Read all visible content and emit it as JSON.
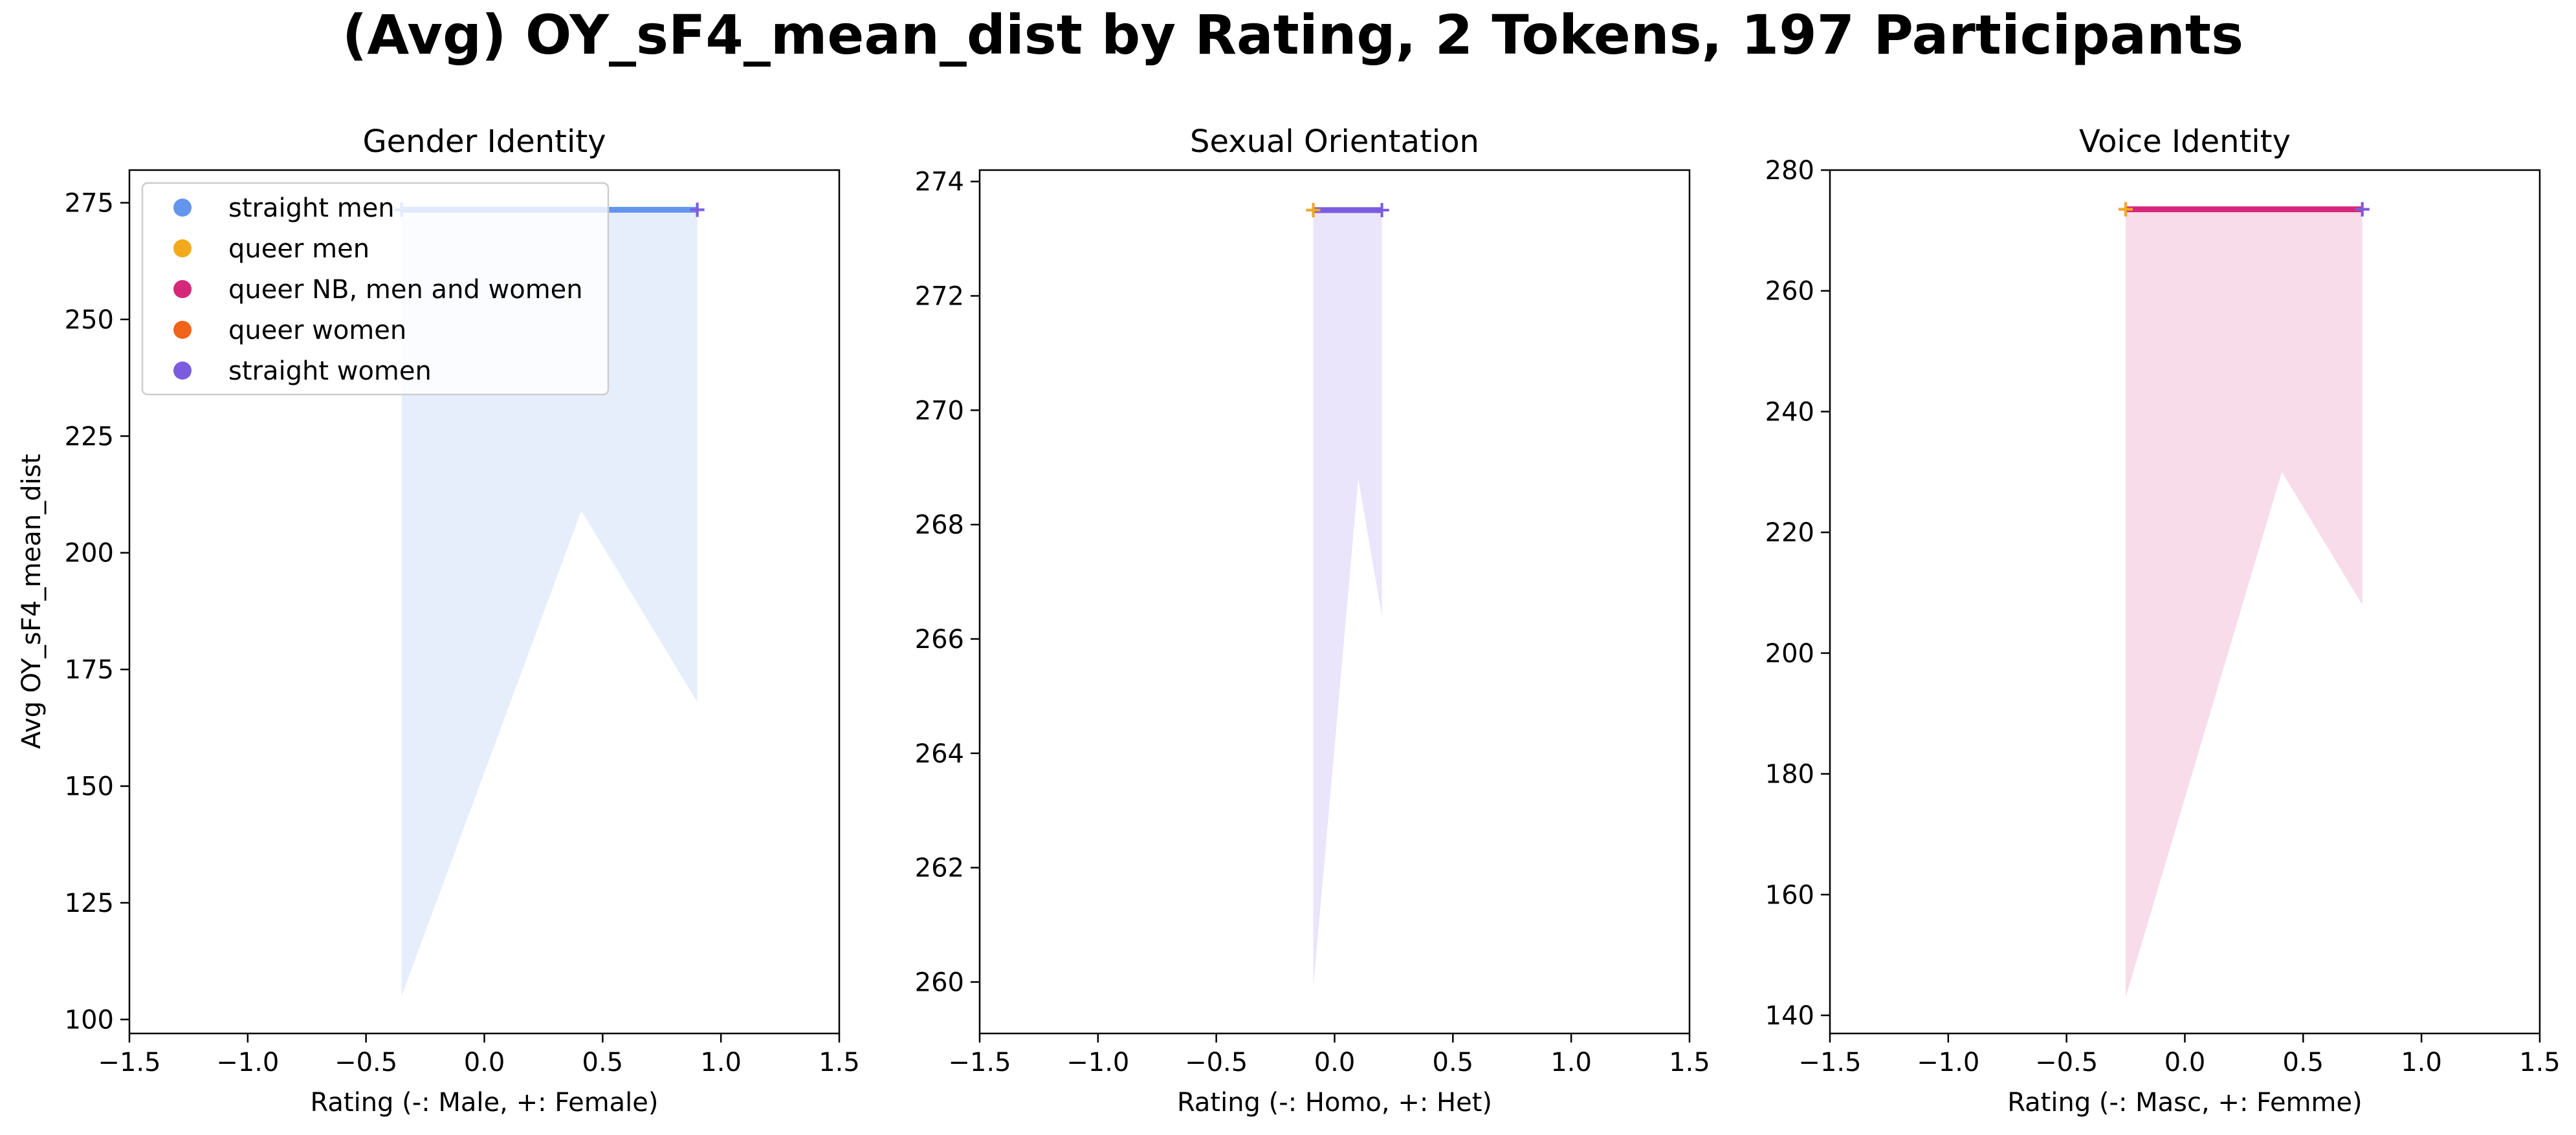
{
  "figure": {
    "title": "(Avg) OY_sF4_mean_dist by Rating, 2 Tokens, 197 Participants",
    "ylabel": "Avg OY_sF4_mean_dist"
  },
  "legend": {
    "placement": "upper-left of first panel",
    "entries": [
      {
        "label": "straight men",
        "color": "#6495ED"
      },
      {
        "label": "queer men",
        "color": "#F2AA1C"
      },
      {
        "label": "queer NB, men and women",
        "color": "#D6287A"
      },
      {
        "label": "queer women",
        "color": "#F26419"
      },
      {
        "label": "straight women",
        "color": "#7B5CE0"
      }
    ]
  },
  "chart_data": [
    {
      "type": "line",
      "title": "Gender Identity",
      "xlabel": "Rating (-: Male, +: Female)",
      "ylabel": "Avg OY_sF4_mean_dist",
      "xlim": [
        -1.5,
        1.5
      ],
      "ylim": [
        97,
        282
      ],
      "xticks": [
        -1.5,
        -1.0,
        -0.5,
        0.0,
        0.5,
        1.0,
        1.5
      ],
      "yticks": [
        100,
        125,
        150,
        175,
        200,
        225,
        250,
        275
      ],
      "xtick_labels": [
        "−1.5",
        "−1.0",
        "−0.5",
        "0.0",
        "0.5",
        "1.0",
        "1.5"
      ],
      "ytick_labels": [
        "100",
        "125",
        "150",
        "175",
        "200",
        "225",
        "250",
        "275"
      ],
      "band": {
        "color": "#6495ED",
        "x": [
          -0.35,
          0.41,
          0.9
        ],
        "upper": [
          273.5,
          273.5,
          273.5
        ],
        "lower": [
          105,
          209,
          168
        ]
      },
      "series": [
        {
          "name": "straight men",
          "color": "#6495ED",
          "x": [
            -0.35,
            0.9
          ],
          "y": [
            273.5,
            273.5
          ]
        },
        {
          "name": "straight women",
          "color": "#7B5CE0",
          "x": [
            0.9
          ],
          "y": [
            273.5
          ]
        }
      ]
    },
    {
      "type": "line",
      "title": "Sexual Orientation",
      "xlabel": "Rating (-: Homo, +: Het)",
      "xlim": [
        -1.5,
        1.5
      ],
      "ylim": [
        259.1,
        274.2
      ],
      "xticks": [
        -1.5,
        -1.0,
        -0.5,
        0.0,
        0.5,
        1.0,
        1.5
      ],
      "yticks": [
        260,
        262,
        264,
        266,
        268,
        270,
        272,
        274
      ],
      "xtick_labels": [
        "−1.5",
        "−1.0",
        "−0.5",
        "0.0",
        "0.5",
        "1.0",
        "1.5"
      ],
      "ytick_labels": [
        "260",
        "262",
        "264",
        "266",
        "268",
        "270",
        "272",
        "274"
      ],
      "band": {
        "color": "#7B5CE0",
        "x": [
          -0.09,
          0.1,
          0.2
        ],
        "upper": [
          273.5,
          273.5,
          273.5
        ],
        "lower": [
          259.9,
          268.8,
          266.4
        ]
      },
      "series": [
        {
          "name": "straight women",
          "color": "#7B5CE0",
          "x": [
            -0.09,
            0.2
          ],
          "y": [
            273.5,
            273.5
          ]
        },
        {
          "name": "queer men",
          "color": "#F2AA1C",
          "x": [
            -0.09
          ],
          "y": [
            273.5
          ]
        }
      ]
    },
    {
      "type": "line",
      "title": "Voice Identity",
      "xlabel": "Rating (-: Masc, +: Femme)",
      "xlim": [
        -1.5,
        1.5
      ],
      "ylim": [
        137,
        280
      ],
      "xticks": [
        -1.5,
        -1.0,
        -0.5,
        0.0,
        0.5,
        1.0,
        1.5
      ],
      "yticks": [
        140,
        160,
        180,
        200,
        220,
        240,
        260,
        280
      ],
      "xtick_labels": [
        "−1.5",
        "−1.0",
        "−0.5",
        "0.0",
        "0.5",
        "1.0",
        "1.5"
      ],
      "ytick_labels": [
        "140",
        "160",
        "180",
        "200",
        "220",
        "240",
        "260",
        "280"
      ],
      "band": {
        "color": "#D6287A",
        "x": [
          -0.25,
          0.41,
          0.75
        ],
        "upper": [
          273.5,
          273.5,
          273.5
        ],
        "lower": [
          143,
          230,
          208
        ]
      },
      "series": [
        {
          "name": "queer NB, men and women",
          "color": "#D6287A",
          "x": [
            -0.25,
            0.75
          ],
          "y": [
            273.5,
            273.5
          ]
        },
        {
          "name": "queer men",
          "color": "#F2AA1C",
          "x": [
            -0.25
          ],
          "y": [
            273.5
          ]
        },
        {
          "name": "straight women",
          "color": "#7B5CE0",
          "x": [
            0.75
          ],
          "y": [
            273.5
          ]
        }
      ]
    }
  ]
}
